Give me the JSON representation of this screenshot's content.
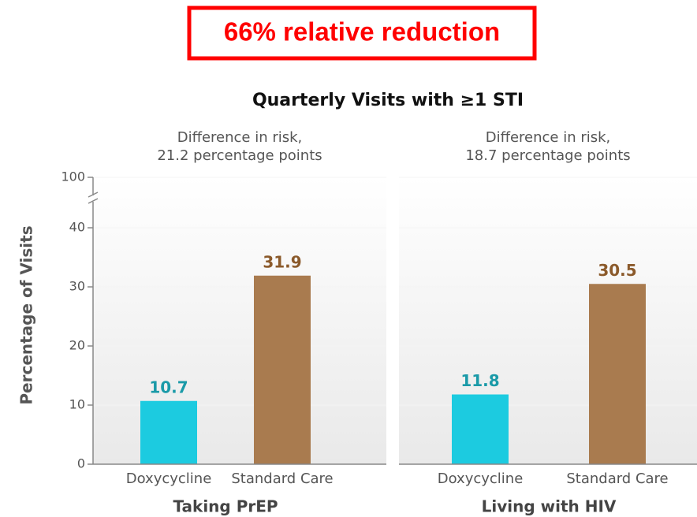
{
  "banner": "66% relative reduction",
  "title": "Quarterly Visits with ≥1 STI",
  "chart_data": [
    {
      "type": "bar",
      "ylabel": "Percentage of Visits",
      "ylim": [
        0,
        100
      ],
      "yticks": [
        0,
        10,
        20,
        30,
        40,
        100
      ],
      "axis_break": true,
      "subtitle": [
        "Difference in risk,",
        "21.2 percentage points"
      ],
      "categories": [
        "Doxycycline",
        "Standard Care"
      ],
      "values": [
        10.7,
        31.9
      ],
      "colors": [
        "#1ccbe0",
        "#a97b4f"
      ],
      "label_colors": [
        "#1a9aa8",
        "#8b5a2b"
      ],
      "xlabel": "Taking PrEP"
    },
    {
      "type": "bar",
      "subtitle": [
        "Difference in risk,",
        "18.7 percentage points"
      ],
      "categories": [
        "Doxycycline",
        "Standard Care"
      ],
      "values": [
        11.8,
        30.5
      ],
      "colors": [
        "#1ccbe0",
        "#a97b4f"
      ],
      "label_colors": [
        "#1a9aa8",
        "#8b5a2b"
      ],
      "xlabel": "Living with HIV"
    }
  ]
}
